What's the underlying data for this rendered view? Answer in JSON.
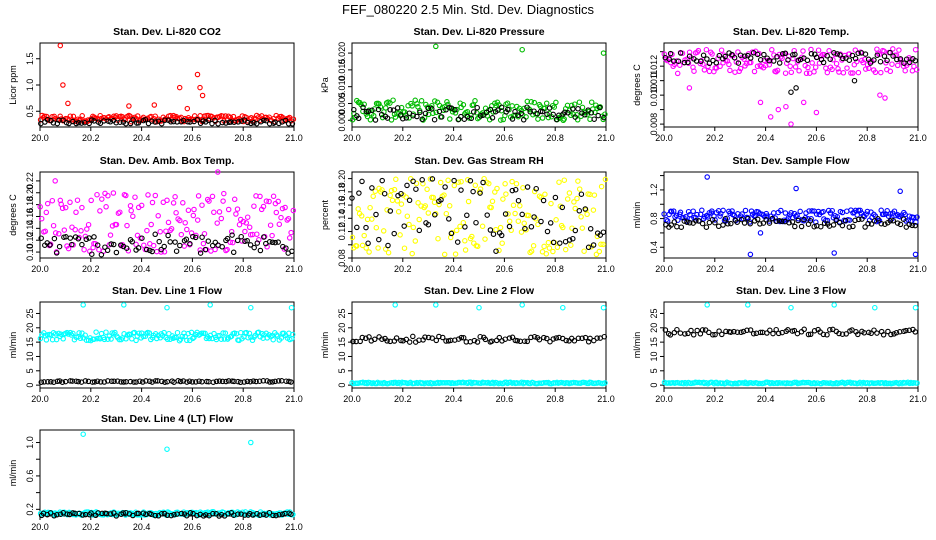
{
  "title": "FEF_080220  2.5 Min. Std. Dev. Diagnostics",
  "colors": {
    "axis": "#000000",
    "black_series": "#000000"
  },
  "chart_data": [
    {
      "type": "scatter",
      "title": "Stan. Dev. Li-820 CO2",
      "xlabel": "",
      "ylabel": "Licor ppm",
      "xlim": [
        20.0,
        21.0
      ],
      "ylim": [
        0.2,
        1.8
      ],
      "xticks": [
        20.0,
        20.2,
        20.4,
        20.6,
        20.8,
        21.0
      ],
      "yticks": [
        0.5,
        1.0,
        1.5
      ],
      "ytick_labels": [
        "0.5",
        "1.0",
        "1.5"
      ],
      "series": [
        {
          "name": "primary",
          "color": "#ff0000",
          "band": [
            0.3,
            0.42
          ],
          "outliers": [
            [
              20.08,
              1.75
            ],
            [
              20.09,
              1.0
            ],
            [
              20.11,
              0.65
            ],
            [
              20.55,
              0.95
            ],
            [
              20.62,
              1.2
            ],
            [
              20.63,
              0.95
            ],
            [
              20.64,
              0.8
            ],
            [
              20.58,
              0.55
            ],
            [
              20.35,
              0.6
            ],
            [
              20.45,
              0.62
            ]
          ]
        },
        {
          "name": "secondary",
          "color": "#000000",
          "band": [
            0.26,
            0.34
          ],
          "outliers": []
        }
      ]
    },
    {
      "type": "scatter",
      "title": "Stan. Dev. Li-820 Pressure",
      "xlabel": "",
      "ylabel": "kPa",
      "xlim": [
        20.0,
        21.0
      ],
      "ylim": [
        -0.002,
        0.023
      ],
      "xticks": [
        20.0,
        20.2,
        20.4,
        20.6,
        20.8,
        21.0
      ],
      "yticks": [
        0.0,
        0.005,
        0.01,
        0.015,
        0.02
      ],
      "ytick_labels": [
        "0.000",
        "0.005",
        "0.010",
        "0.015",
        "0.020"
      ],
      "series": [
        {
          "name": "primary",
          "color": "#00bb00",
          "band": [
            0.0,
            0.006
          ],
          "outliers": [
            [
              20.33,
              0.022
            ],
            [
              20.67,
              0.021
            ],
            [
              20.99,
              0.02
            ]
          ]
        },
        {
          "name": "secondary",
          "color": "#000000",
          "band": [
            0.0,
            0.004
          ],
          "outliers": []
        }
      ]
    },
    {
      "type": "scatter",
      "title": "Stan. Dev. Li-820 Temp.",
      "xlabel": "",
      "ylabel": "degrees C",
      "xlim": [
        20.0,
        21.0
      ],
      "ylim": [
        0.0078,
        0.0136
      ],
      "xticks": [
        20.0,
        20.2,
        20.4,
        20.6,
        20.8,
        21.0
      ],
      "yticks": [
        0.008,
        0.009,
        0.01,
        0.011,
        0.012,
        0.013
      ],
      "ytick_labels": [
        "0.008",
        "",
        "0.010",
        "0.011",
        "0.012",
        ""
      ],
      "series": [
        {
          "name": "primary",
          "color": "#ff00ff",
          "band": [
            0.0115,
            0.0132
          ],
          "outliers": [
            [
              20.42,
              0.0085
            ],
            [
              20.45,
              0.009
            ],
            [
              20.5,
              0.008
            ],
            [
              20.55,
              0.0095
            ],
            [
              20.6,
              0.0088
            ],
            [
              20.38,
              0.0095
            ],
            [
              20.85,
              0.01
            ],
            [
              20.87,
              0.0098
            ],
            [
              20.1,
              0.0105
            ],
            [
              20.48,
              0.0092
            ]
          ]
        },
        {
          "name": "secondary",
          "color": "#000000",
          "band": [
            0.0122,
            0.013
          ],
          "outliers": [
            [
              20.5,
              0.0102
            ],
            [
              20.52,
              0.0105
            ],
            [
              20.75,
              0.011
            ]
          ]
        }
      ]
    },
    {
      "type": "scatter",
      "title": "Stan. Dev. Amb. Box Temp.",
      "xlabel": "",
      "ylabel": "degrees C",
      "xlim": [
        20.0,
        21.0
      ],
      "ylim": [
        0.09,
        0.235
      ],
      "xticks": [
        20.0,
        20.2,
        20.4,
        20.6,
        20.8,
        21.0
      ],
      "yticks": [
        0.1,
        0.12,
        0.14,
        0.16,
        0.18,
        0.2,
        0.22
      ],
      "ytick_labels": [
        "0.10",
        "0.12",
        "0.14",
        "0.16",
        "0.18",
        "0.20",
        "0.22"
      ],
      "series": [
        {
          "name": "primary",
          "color": "#ff00ff",
          "band": [
            0.1,
            0.2
          ],
          "outliers": [
            [
              20.06,
              0.22
            ],
            [
              20.7,
              0.235
            ]
          ]
        },
        {
          "name": "secondary",
          "color": "#000000",
          "band": [
            0.095,
            0.13
          ],
          "outliers": []
        }
      ]
    },
    {
      "type": "scatter",
      "title": "Stan. Dev. Gas Stream RH",
      "xlabel": "",
      "ylabel": "percent",
      "xlim": [
        20.0,
        21.0
      ],
      "ylim": [
        0.08,
        0.21
      ],
      "xticks": [
        20.0,
        20.2,
        20.4,
        20.6,
        20.8,
        21.0
      ],
      "yticks": [
        0.08,
        0.1,
        0.12,
        0.14,
        0.16,
        0.18,
        0.2
      ],
      "ytick_labels": [
        "0.08",
        "",
        "0.12",
        "0.14",
        "0.16",
        "0.18",
        "0.20"
      ],
      "series": [
        {
          "name": "primary",
          "color": "#ffff00",
          "band": [
            0.085,
            0.2
          ],
          "outliers": []
        },
        {
          "name": "secondary",
          "color": "#000000",
          "band": [
            0.09,
            0.2
          ],
          "outliers": []
        }
      ]
    },
    {
      "type": "scatter",
      "title": "Stan. Dev. Sample Flow",
      "xlabel": "",
      "ylabel": "ml/min",
      "xlim": [
        20.0,
        21.0
      ],
      "ylim": [
        0.25,
        1.45
      ],
      "xticks": [
        20.0,
        20.2,
        20.4,
        20.6,
        20.8,
        21.0
      ],
      "yticks": [
        0.4,
        0.6,
        0.8,
        1.0,
        1.2,
        1.4
      ],
      "ytick_labels": [
        "0.4",
        "",
        "0.8",
        "",
        "1.2",
        ""
      ],
      "series": [
        {
          "name": "primary",
          "color": "#0000ff",
          "band": [
            0.75,
            0.92
          ],
          "outliers": [
            [
              20.17,
              1.38
            ],
            [
              20.52,
              1.22
            ],
            [
              20.93,
              1.18
            ],
            [
              20.34,
              0.3
            ],
            [
              20.99,
              0.3
            ],
            [
              20.67,
              0.32
            ],
            [
              20.38,
              0.6
            ]
          ]
        },
        {
          "name": "secondary",
          "color": "#000000",
          "band": [
            0.68,
            0.8
          ],
          "outliers": []
        }
      ]
    },
    {
      "type": "scatter",
      "title": "Stan. Dev. Line 1 Flow",
      "xlabel": "",
      "ylabel": "ml/min",
      "xlim": [
        20.0,
        21.0
      ],
      "ylim": [
        -1,
        29
      ],
      "xticks": [
        20.0,
        20.2,
        20.4,
        20.6,
        20.8,
        21.0
      ],
      "yticks": [
        0,
        5,
        10,
        15,
        20,
        25
      ],
      "ytick_labels": [
        "0",
        "5",
        "10",
        "15",
        "20",
        "25"
      ],
      "series": [
        {
          "name": "primary",
          "color": "#00ffff",
          "band": [
            15.5,
            18.5
          ],
          "outliers": [
            [
              20.17,
              28
            ],
            [
              20.33,
              28
            ],
            [
              20.5,
              27
            ],
            [
              20.67,
              28
            ],
            [
              20.83,
              27
            ],
            [
              20.99,
              27
            ]
          ]
        },
        {
          "name": "secondary",
          "color": "#000000",
          "band": [
            1.0,
            1.5
          ],
          "outliers": []
        }
      ]
    },
    {
      "type": "scatter",
      "title": "Stan. Dev. Line 2 Flow",
      "xlabel": "",
      "ylabel": "ml/min",
      "xlim": [
        20.0,
        21.0
      ],
      "ylim": [
        -1,
        29
      ],
      "xticks": [
        20.0,
        20.2,
        20.4,
        20.6,
        20.8,
        21.0
      ],
      "yticks": [
        0,
        5,
        10,
        15,
        20,
        25
      ],
      "ytick_labels": [
        "0",
        "5",
        "10",
        "15",
        "20",
        "25"
      ],
      "series": [
        {
          "name": "primary",
          "color": "#00ffff",
          "band": [
            0.5,
            1.0
          ],
          "outliers": [
            [
              20.17,
              28
            ],
            [
              20.33,
              28
            ],
            [
              20.5,
              27
            ],
            [
              20.67,
              28
            ],
            [
              20.83,
              27
            ],
            [
              20.99,
              27
            ]
          ]
        },
        {
          "name": "secondary",
          "color": "#000000",
          "band": [
            15.0,
            17.0
          ],
          "outliers": []
        }
      ]
    },
    {
      "type": "scatter",
      "title": "Stan. Dev. Line 3 Flow",
      "xlabel": "",
      "ylabel": "ml/min",
      "xlim": [
        20.0,
        21.0
      ],
      "ylim": [
        -1,
        29
      ],
      "xticks": [
        20.0,
        20.2,
        20.4,
        20.6,
        20.8,
        21.0
      ],
      "yticks": [
        0,
        5,
        10,
        15,
        20,
        25
      ],
      "ytick_labels": [
        "0",
        "5",
        "10",
        "15",
        "20",
        "25"
      ],
      "series": [
        {
          "name": "primary",
          "color": "#00ffff",
          "band": [
            0.5,
            1.0
          ],
          "outliers": [
            [
              20.17,
              28
            ],
            [
              20.33,
              28
            ],
            [
              20.5,
              27
            ],
            [
              20.67,
              28
            ],
            [
              20.83,
              27
            ],
            [
              20.99,
              27
            ]
          ]
        },
        {
          "name": "secondary",
          "color": "#000000",
          "band": [
            17.5,
            19.5
          ],
          "outliers": []
        }
      ]
    },
    {
      "type": "scatter",
      "title": "Stan. Dev. Line 4 (LT) Flow",
      "xlabel": "",
      "ylabel": "ml/min",
      "xlim": [
        20.0,
        21.0
      ],
      "ylim": [
        0.12,
        1.15
      ],
      "xticks": [
        20.0,
        20.2,
        20.4,
        20.6,
        20.8,
        21.0
      ],
      "yticks": [
        0.2,
        0.4,
        0.6,
        0.8,
        1.0
      ],
      "ytick_labels": [
        "0.2",
        "",
        "0.6",
        "",
        "1.0"
      ],
      "series": [
        {
          "name": "primary",
          "color": "#00ffff",
          "band": [
            0.13,
            0.17
          ],
          "outliers": [
            [
              20.17,
              1.1
            ],
            [
              20.5,
              0.92
            ],
            [
              20.83,
              1.0
            ]
          ]
        },
        {
          "name": "secondary",
          "color": "#000000",
          "band": [
            0.12,
            0.16
          ],
          "outliers": []
        }
      ]
    }
  ]
}
